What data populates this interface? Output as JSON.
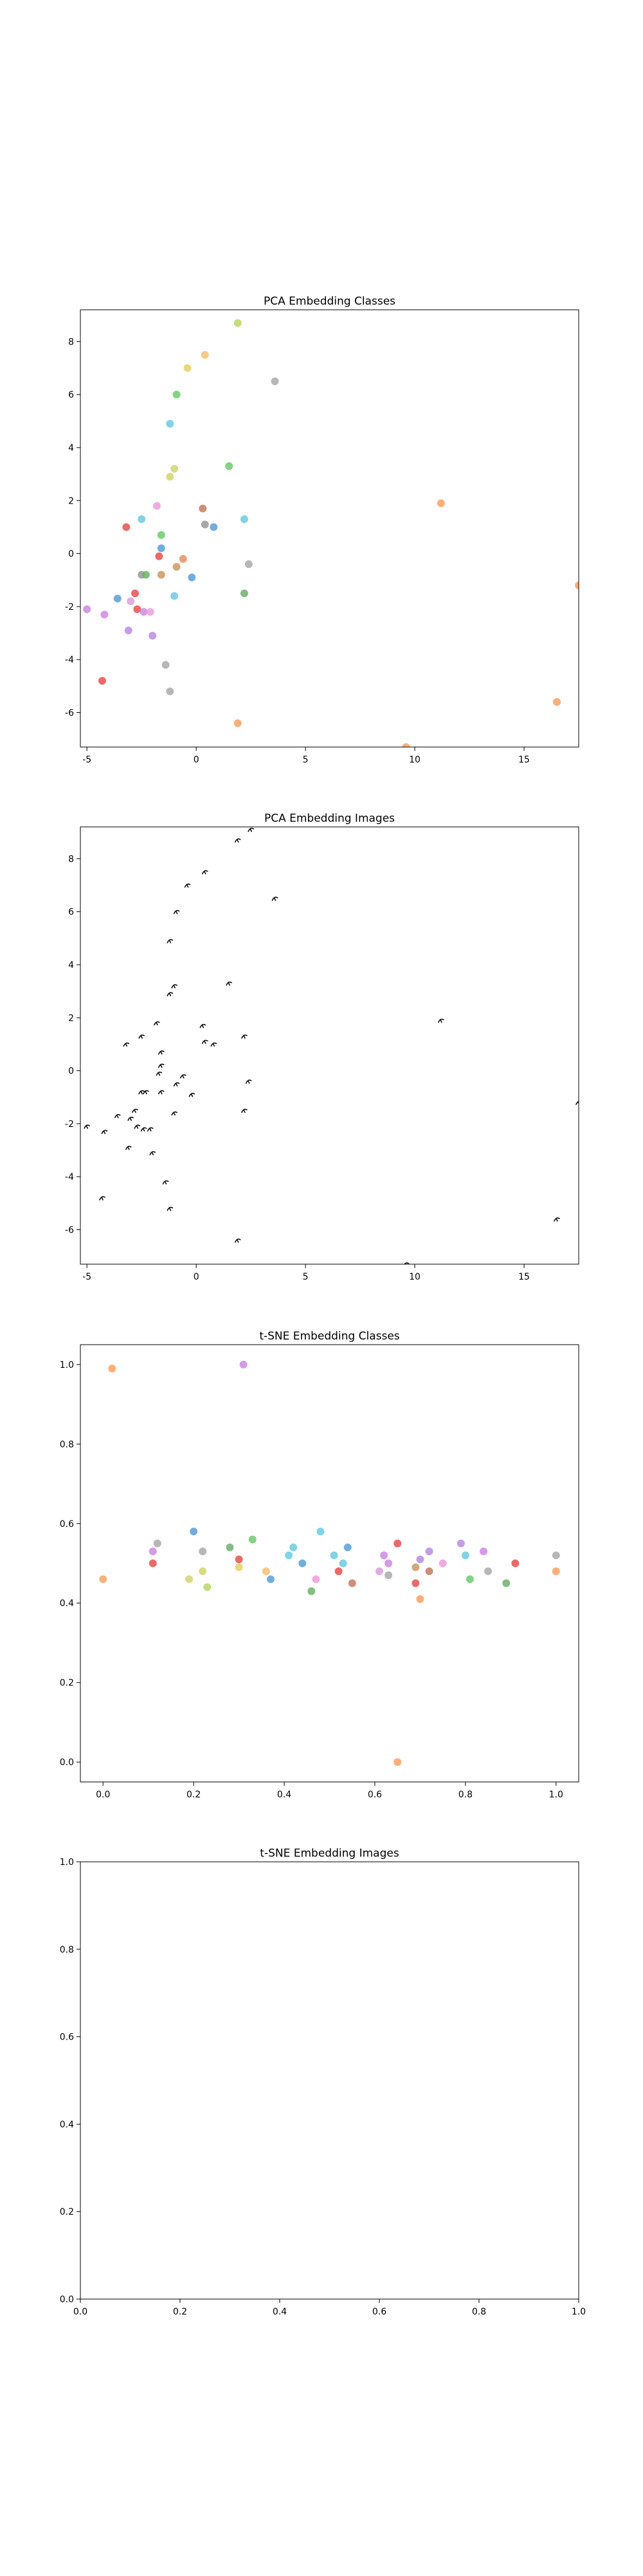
{
  "chart_data": [
    {
      "type": "scatter",
      "title": "PCA Embedding Classes",
      "xlabel": "",
      "ylabel": "",
      "xlim": [
        -5.3,
        17.5
      ],
      "ylim": [
        -7.3,
        9.2
      ],
      "xticks": [
        -5,
        0,
        5,
        10,
        15
      ],
      "yticks": [
        -6,
        -4,
        -2,
        0,
        2,
        4,
        6,
        8
      ],
      "grid": false,
      "points": [
        {
          "x": -5.0,
          "y": -2.1,
          "color": "#cf88e3"
        },
        {
          "x": -4.3,
          "y": -4.8,
          "color": "#e8504d"
        },
        {
          "x": -4.2,
          "y": -2.3,
          "color": "#cf88e3"
        },
        {
          "x": -3.6,
          "y": -1.7,
          "color": "#5a9fd8"
        },
        {
          "x": -3.2,
          "y": 1.0,
          "color": "#e8504d"
        },
        {
          "x": -3.1,
          "y": -2.9,
          "color": "#b88ce3"
        },
        {
          "x": -3.0,
          "y": -1.8,
          "color": "#d9a0d9"
        },
        {
          "x": -2.8,
          "y": -1.5,
          "color": "#e8504d"
        },
        {
          "x": -2.7,
          "y": -2.1,
          "color": "#e8504d"
        },
        {
          "x": -2.5,
          "y": -0.8,
          "color": "#999999"
        },
        {
          "x": -2.5,
          "y": 1.3,
          "color": "#6ccbe0"
        },
        {
          "x": -2.4,
          "y": -2.2,
          "color": "#cf88e3"
        },
        {
          "x": -2.3,
          "y": -0.8,
          "color": "#6fb26f"
        },
        {
          "x": -2.1,
          "y": -2.2,
          "color": "#ee9cdc"
        },
        {
          "x": -2.0,
          "y": -3.1,
          "color": "#b88ce3"
        },
        {
          "x": -1.8,
          "y": 1.8,
          "color": "#ee9cdc"
        },
        {
          "x": -1.7,
          "y": -0.1,
          "color": "#e8504d"
        },
        {
          "x": -1.6,
          "y": 0.2,
          "color": "#5a9fd8"
        },
        {
          "x": -1.6,
          "y": 0.7,
          "color": "#6ccb6c"
        },
        {
          "x": -1.6,
          "y": -0.8,
          "color": "#cc9966"
        },
        {
          "x": -1.4,
          "y": -4.2,
          "color": "#aaaaaa"
        },
        {
          "x": -1.2,
          "y": -5.2,
          "color": "#aaaaaa"
        },
        {
          "x": -1.2,
          "y": 4.9,
          "color": "#6ccbe0"
        },
        {
          "x": -1.2,
          "y": 2.9,
          "color": "#d4d46e"
        },
        {
          "x": -1.0,
          "y": 3.2,
          "color": "#d4d46e"
        },
        {
          "x": -1.0,
          "y": -1.6,
          "color": "#6ccbe0"
        },
        {
          "x": -0.9,
          "y": 6.0,
          "color": "#6ccb6c"
        },
        {
          "x": -0.9,
          "y": -0.5,
          "color": "#cc9966"
        },
        {
          "x": -0.6,
          "y": -0.2,
          "color": "#e89060"
        },
        {
          "x": -0.4,
          "y": 7.0,
          "color": "#e8d060"
        },
        {
          "x": -0.2,
          "y": -0.9,
          "color": "#5a9fd8"
        },
        {
          "x": 0.3,
          "y": 1.7,
          "color": "#c77a60"
        },
        {
          "x": 0.4,
          "y": 7.5,
          "color": "#f5c070"
        },
        {
          "x": 0.4,
          "y": 1.1,
          "color": "#999999"
        },
        {
          "x": 0.8,
          "y": 1.0,
          "color": "#5a9fd8"
        },
        {
          "x": 1.5,
          "y": 3.3,
          "color": "#6ccb6c"
        },
        {
          "x": 1.9,
          "y": 8.7,
          "color": "#b8d860"
        },
        {
          "x": 1.9,
          "y": -6.4,
          "color": "#ffa060"
        },
        {
          "x": 2.2,
          "y": -1.5,
          "color": "#6fb26f"
        },
        {
          "x": 2.2,
          "y": 1.3,
          "color": "#6ccbe0"
        },
        {
          "x": 2.4,
          "y": -0.4,
          "color": "#aaaaaa"
        },
        {
          "x": 3.6,
          "y": 6.5,
          "color": "#aaaaaa"
        },
        {
          "x": 9.6,
          "y": -7.3,
          "color": "#ffa060"
        },
        {
          "x": 11.2,
          "y": 1.9,
          "color": "#ffa060"
        },
        {
          "x": 16.5,
          "y": -5.6,
          "color": "#ffa060"
        },
        {
          "x": 17.5,
          "y": -1.2,
          "color": "#ffa060"
        }
      ]
    },
    {
      "type": "scatter",
      "title": "PCA Embedding Images",
      "xlabel": "",
      "ylabel": "",
      "xlim": [
        -5.3,
        17.5
      ],
      "ylim": [
        -7.3,
        9.2
      ],
      "xticks": [
        -5,
        0,
        5,
        10,
        15
      ],
      "yticks": [
        -6,
        -4,
        -2,
        0,
        2,
        4,
        6,
        8
      ],
      "grid": false,
      "points": [
        {
          "x": -5.0,
          "y": -2.1
        },
        {
          "x": -4.3,
          "y": -4.8
        },
        {
          "x": -4.2,
          "y": -2.3
        },
        {
          "x": -3.6,
          "y": -1.7
        },
        {
          "x": -3.2,
          "y": 1.0
        },
        {
          "x": -3.1,
          "y": -2.9
        },
        {
          "x": -3.0,
          "y": -1.8
        },
        {
          "x": -2.8,
          "y": -1.5
        },
        {
          "x": -2.7,
          "y": -2.1
        },
        {
          "x": -2.5,
          "y": -0.8
        },
        {
          "x": -2.5,
          "y": 1.3
        },
        {
          "x": -2.4,
          "y": -2.2
        },
        {
          "x": -2.3,
          "y": -0.8
        },
        {
          "x": -2.1,
          "y": -2.2
        },
        {
          "x": -2.0,
          "y": -3.1
        },
        {
          "x": -1.8,
          "y": 1.8
        },
        {
          "x": -1.7,
          "y": -0.1
        },
        {
          "x": -1.6,
          "y": 0.2
        },
        {
          "x": -1.6,
          "y": 0.7
        },
        {
          "x": -1.6,
          "y": -0.8
        },
        {
          "x": -1.4,
          "y": -4.2
        },
        {
          "x": -1.2,
          "y": -5.2
        },
        {
          "x": -1.2,
          "y": 4.9
        },
        {
          "x": -1.2,
          "y": 2.9
        },
        {
          "x": -1.0,
          "y": 3.2
        },
        {
          "x": -1.0,
          "y": -1.6
        },
        {
          "x": -0.9,
          "y": 6.0
        },
        {
          "x": -0.9,
          "y": -0.5
        },
        {
          "x": -0.6,
          "y": -0.2
        },
        {
          "x": -0.4,
          "y": 7.0
        },
        {
          "x": -0.2,
          "y": -0.9
        },
        {
          "x": 0.3,
          "y": 1.7
        },
        {
          "x": 0.4,
          "y": 7.5
        },
        {
          "x": 0.4,
          "y": 1.1
        },
        {
          "x": 0.8,
          "y": 1.0
        },
        {
          "x": 1.5,
          "y": 3.3
        },
        {
          "x": 1.9,
          "y": 8.7
        },
        {
          "x": 1.9,
          "y": -6.4
        },
        {
          "x": 2.2,
          "y": -1.5
        },
        {
          "x": 2.2,
          "y": 1.3
        },
        {
          "x": 2.4,
          "y": -0.4
        },
        {
          "x": 2.5,
          "y": 9.1
        },
        {
          "x": 3.6,
          "y": 6.5
        },
        {
          "x": 9.6,
          "y": -7.3
        },
        {
          "x": 11.2,
          "y": 1.9
        },
        {
          "x": 16.5,
          "y": -5.6
        },
        {
          "x": 17.5,
          "y": -1.2
        }
      ]
    },
    {
      "type": "scatter",
      "title": "t-SNE Embedding Classes",
      "xlabel": "",
      "ylabel": "",
      "xlim": [
        -0.05,
        1.05
      ],
      "ylim": [
        -0.05,
        1.05
      ],
      "xticks": [
        0.0,
        0.2,
        0.4,
        0.6,
        0.8,
        1.0
      ],
      "yticks": [
        0.0,
        0.2,
        0.4,
        0.6,
        0.8,
        1.0
      ],
      "grid": false,
      "points": [
        {
          "x": 0.0,
          "y": 0.46,
          "color": "#ffa060"
        },
        {
          "x": 0.02,
          "y": 0.99,
          "color": "#ffa060"
        },
        {
          "x": 0.11,
          "y": 0.53,
          "color": "#cf88e3"
        },
        {
          "x": 0.11,
          "y": 0.5,
          "color": "#e8504d"
        },
        {
          "x": 0.12,
          "y": 0.55,
          "color": "#aaaaaa"
        },
        {
          "x": 0.19,
          "y": 0.46,
          "color": "#d4d46e"
        },
        {
          "x": 0.2,
          "y": 0.58,
          "color": "#5a9fd8"
        },
        {
          "x": 0.22,
          "y": 0.53,
          "color": "#aaaaaa"
        },
        {
          "x": 0.22,
          "y": 0.48,
          "color": "#d4d46e"
        },
        {
          "x": 0.23,
          "y": 0.44,
          "color": "#b8d860"
        },
        {
          "x": 0.28,
          "y": 0.54,
          "color": "#6fb26f"
        },
        {
          "x": 0.3,
          "y": 0.51,
          "color": "#e8504d"
        },
        {
          "x": 0.3,
          "y": 0.49,
          "color": "#e8d060"
        },
        {
          "x": 0.31,
          "y": 1.0,
          "color": "#cf88e3"
        },
        {
          "x": 0.33,
          "y": 0.56,
          "color": "#6ccb6c"
        },
        {
          "x": 0.36,
          "y": 0.48,
          "color": "#f5c070"
        },
        {
          "x": 0.37,
          "y": 0.46,
          "color": "#5a9fd8"
        },
        {
          "x": 0.41,
          "y": 0.52,
          "color": "#6ccbe0"
        },
        {
          "x": 0.42,
          "y": 0.54,
          "color": "#6ccbe0"
        },
        {
          "x": 0.44,
          "y": 0.5,
          "color": "#5a9fd8"
        },
        {
          "x": 0.46,
          "y": 0.43,
          "color": "#6fb26f"
        },
        {
          "x": 0.47,
          "y": 0.46,
          "color": "#ee9cdc"
        },
        {
          "x": 0.48,
          "y": 0.58,
          "color": "#6ccbe0"
        },
        {
          "x": 0.51,
          "y": 0.52,
          "color": "#6ccbe0"
        },
        {
          "x": 0.52,
          "y": 0.48,
          "color": "#e8504d"
        },
        {
          "x": 0.53,
          "y": 0.5,
          "color": "#6ccbe0"
        },
        {
          "x": 0.54,
          "y": 0.54,
          "color": "#5a9fd8"
        },
        {
          "x": 0.55,
          "y": 0.45,
          "color": "#c77a60"
        },
        {
          "x": 0.61,
          "y": 0.48,
          "color": "#d9a0d9"
        },
        {
          "x": 0.62,
          "y": 0.52,
          "color": "#cf88e3"
        },
        {
          "x": 0.63,
          "y": 0.5,
          "color": "#cf88e3"
        },
        {
          "x": 0.63,
          "y": 0.47,
          "color": "#aaaaaa"
        },
        {
          "x": 0.65,
          "y": 0.55,
          "color": "#e8504d"
        },
        {
          "x": 0.65,
          "y": 0.0,
          "color": "#ffa060"
        },
        {
          "x": 0.69,
          "y": 0.45,
          "color": "#e8504d"
        },
        {
          "x": 0.69,
          "y": 0.49,
          "color": "#cc9966"
        },
        {
          "x": 0.7,
          "y": 0.41,
          "color": "#ffa060"
        },
        {
          "x": 0.7,
          "y": 0.51,
          "color": "#b88ce3"
        },
        {
          "x": 0.72,
          "y": 0.48,
          "color": "#c77a60"
        },
        {
          "x": 0.72,
          "y": 0.53,
          "color": "#b88ce3"
        },
        {
          "x": 0.75,
          "y": 0.5,
          "color": "#ee9cdc"
        },
        {
          "x": 0.79,
          "y": 0.55,
          "color": "#b88ce3"
        },
        {
          "x": 0.8,
          "y": 0.52,
          "color": "#6ccbe0"
        },
        {
          "x": 0.81,
          "y": 0.46,
          "color": "#6ccb6c"
        },
        {
          "x": 0.84,
          "y": 0.53,
          "color": "#cf88e3"
        },
        {
          "x": 0.85,
          "y": 0.48,
          "color": "#aaaaaa"
        },
        {
          "x": 0.89,
          "y": 0.45,
          "color": "#6fb26f"
        },
        {
          "x": 0.91,
          "y": 0.5,
          "color": "#e8504d"
        },
        {
          "x": 1.0,
          "y": 0.52,
          "color": "#aaaaaa"
        },
        {
          "x": 1.0,
          "y": 0.48,
          "color": "#ffa060"
        }
      ]
    },
    {
      "type": "scatter",
      "title": "t-SNE Embedding Images",
      "xlabel": "",
      "ylabel": "",
      "xlim": [
        0,
        1
      ],
      "ylim": [
        0,
        1
      ],
      "xticks": [
        0.0,
        0.2,
        0.4,
        0.6,
        0.8,
        1.0
      ],
      "yticks": [
        0.0,
        0.2,
        0.4,
        0.6,
        0.8,
        1.0
      ],
      "grid": false,
      "points": []
    }
  ]
}
